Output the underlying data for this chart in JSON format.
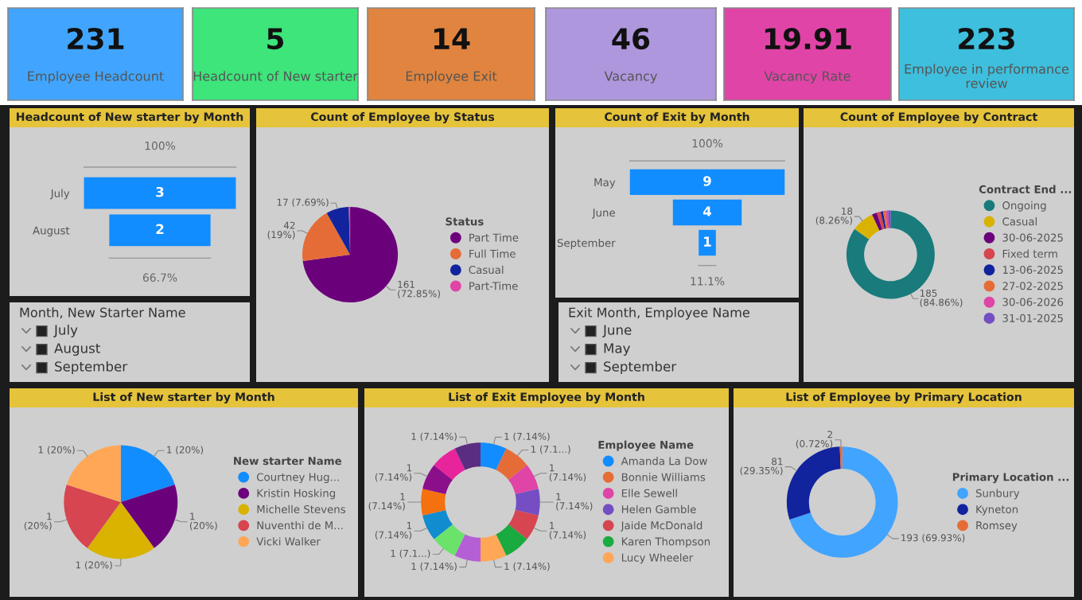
{
  "chart_data": [
    {
      "type": "other",
      "title": "Employee Headcount",
      "annotations": [
        "231"
      ]
    },
    {
      "type": "other",
      "title": "Headcount of New starter",
      "annotations": [
        "5"
      ]
    },
    {
      "type": "other",
      "title": "Employee Exit",
      "annotations": [
        "14"
      ]
    },
    {
      "type": "other",
      "title": "Vacancy",
      "annotations": [
        "46"
      ]
    },
    {
      "type": "other",
      "title": "Vacancy Rate",
      "annotations": [
        "19.91"
      ]
    },
    {
      "type": "other",
      "title": "Employee in performance review",
      "annotations": [
        "223"
      ]
    },
    {
      "type": "other",
      "title": "Headcount of New starter by Month",
      "categories": [
        "July",
        "August"
      ],
      "values": [
        3,
        2
      ],
      "color": "#118dff",
      "data_labels": true,
      "annotations": [
        "100%",
        "66.7%"
      ]
    },
    {
      "type": "other",
      "title": "Month, New Starter Name",
      "annotations": [
        "July",
        "August",
        "September"
      ]
    },
    {
      "type": "pie",
      "title": "Count of Employee by Status",
      "legend_title": "Status",
      "legend": "right",
      "categories": [
        "Part Time",
        "Full Time",
        "Casual",
        "Part-Time"
      ],
      "values": [
        161,
        42,
        17,
        1
      ],
      "colors": [
        "#6b007b",
        "#e66c37",
        "#12239e",
        "#e044a7"
      ],
      "value_labels": [
        "161\n(72.85%)",
        "42\n(19%)",
        "17 (7.69%)",
        null
      ]
    },
    {
      "type": "other",
      "title": "Count of Exit by Month",
      "categories": [
        "May",
        "June",
        "September"
      ],
      "values": [
        9,
        4,
        1
      ],
      "color": "#118dff",
      "data_labels": true,
      "annotations": [
        "100%",
        "11.1%"
      ]
    },
    {
      "type": "other",
      "title": "Exit Month, Employee Name",
      "annotations": [
        "June",
        "May",
        "September"
      ]
    },
    {
      "type": "donut",
      "title": "Count of Employee by Contract",
      "legend_title": "Contract End ...",
      "legend": "right",
      "categories": [
        "Ongoing",
        "Casual",
        "30-06-2025",
        "Fixed term",
        "13-06-2025",
        "27-02-2025",
        "30-06-2026",
        "31-01-2025"
      ],
      "values": [
        185,
        18,
        4,
        3,
        2,
        2,
        2,
        2
      ],
      "colors": [
        "#197b7b",
        "#d9b300",
        "#6b007b",
        "#d64550",
        "#12239e",
        "#e66c37",
        "#e044a7",
        "#744ec2"
      ],
      "value_labels": [
        "185\n(84.86%)",
        "18\n(8.26%)",
        null,
        null,
        null,
        null,
        null,
        null
      ]
    },
    {
      "type": "pie",
      "title": "List of New starter by Month",
      "legend_title": "New starter Name",
      "legend": "right",
      "categories": [
        "Courtney Hug...",
        "Kristin Hosking",
        "Michelle Stevens",
        "Nuventhi de M...",
        "Vicki Walker"
      ],
      "values": [
        1,
        1,
        1,
        1,
        1
      ],
      "colors": [
        "#118dff",
        "#6b007b",
        "#d9b300",
        "#d64550",
        "#ffa756"
      ],
      "value_labels": [
        "1 (20%)",
        "1\n(20%)",
        "1 (20%)",
        "1\n(20%)",
        "1 (20%)"
      ]
    },
    {
      "type": "donut",
      "title": "List of Exit Employee by Month",
      "legend_title": "Employee Name",
      "legend": "right",
      "categories": [
        "Amanda La Dow",
        "Bonnie Williams",
        "Elle Sewell",
        "Helen Gamble",
        "Jaide McDonald",
        "Karen Thompson",
        "Lucy Wheeler",
        null,
        null,
        null,
        null,
        null,
        null,
        null
      ],
      "values": [
        1,
        1,
        1,
        1,
        1,
        1,
        1,
        1,
        1,
        1,
        1,
        1,
        1,
        1
      ],
      "colors": [
        "#118dff",
        "#e66c37",
        "#e044a7",
        "#744ec2",
        "#d64550",
        "#1aab40",
        "#ffa756",
        "#b55fd6",
        "#6be36b",
        "#118dcf",
        "#f5700e",
        "#8b0e8b",
        "#e8249c",
        "#5a2d82"
      ],
      "value_labels": [
        "1 (7.14%)",
        "1 (7.1...)",
        "1\n(7.14%)",
        "1\n(7.14%)",
        "1\n(7.14%)",
        null,
        "1 (7.14%)",
        "1 (7.14%)",
        "1 (7.1...)",
        "1\n(7.14%)",
        "1\n(7.14%)",
        "1\n(7.14%)",
        null,
        "1 (7.14%)"
      ]
    },
    {
      "type": "donut",
      "title": "List of Employee by Primary Location",
      "legend_title": "Primary Location ...",
      "legend": "right",
      "categories": [
        "Sunbury",
        "Kyneton",
        "Romsey"
      ],
      "values": [
        193,
        81,
        2
      ],
      "colors": [
        "#41a4ff",
        "#12239e",
        "#e66c37"
      ],
      "value_labels": [
        "193 (69.93%)",
        "81\n(29.35%)",
        "2\n(0.72%)"
      ]
    }
  ]
}
